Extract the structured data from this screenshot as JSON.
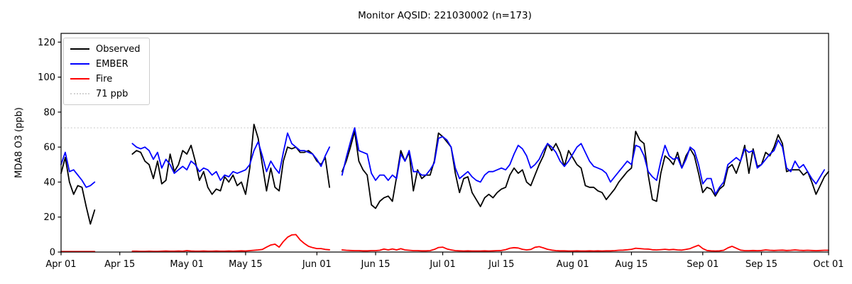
{
  "chart_data": {
    "type": "line",
    "title": "Monitor AQSID: 221030002 (n=173)",
    "xlabel": "",
    "ylabel": "MDA8 O3 (ppb)",
    "ylim": [
      0,
      125
    ],
    "grid": false,
    "legend_position": "upper left",
    "x_unit": "days since Apr 01",
    "x_range_days": 183,
    "x_ticks": [
      {
        "day": 0,
        "label": "Apr 01"
      },
      {
        "day": 14,
        "label": "Apr 15"
      },
      {
        "day": 30,
        "label": "May 01"
      },
      {
        "day": 44,
        "label": "May 15"
      },
      {
        "day": 61,
        "label": "Jun 01"
      },
      {
        "day": 75,
        "label": "Jun 15"
      },
      {
        "day": 91,
        "label": "Jul 01"
      },
      {
        "day": 105,
        "label": "Jul 15"
      },
      {
        "day": 122,
        "label": "Aug 01"
      },
      {
        "day": 136,
        "label": "Aug 15"
      },
      {
        "day": 153,
        "label": "Sep 01"
      },
      {
        "day": 167,
        "label": "Sep 15"
      },
      {
        "day": 183,
        "label": "Oct 01"
      }
    ],
    "y_ticks": [
      0,
      20,
      40,
      60,
      80,
      100,
      120
    ],
    "reference_line": {
      "label": "71 ppb",
      "value": 71,
      "color": "#d3d3d3",
      "style": "dotted"
    },
    "series": [
      {
        "name": "Observed",
        "color": "#000000",
        "values": [
          45,
          54,
          40,
          33,
          38,
          37,
          26,
          16,
          24,
          null,
          null,
          null,
          null,
          null,
          null,
          null,
          null,
          56,
          58,
          57,
          52,
          50,
          42,
          52,
          39,
          41,
          56,
          46,
          50,
          58,
          56,
          61,
          52,
          41,
          46,
          37,
          33,
          36,
          35,
          43,
          40,
          44,
          38,
          40,
          33,
          48,
          73,
          65,
          50,
          35,
          48,
          37,
          35,
          52,
          60,
          59,
          60,
          57,
          57,
          58,
          56,
          52,
          50,
          54,
          37,
          null,
          null,
          46,
          52,
          60,
          69,
          52,
          47,
          44,
          27,
          25,
          29,
          31,
          32,
          29,
          43,
          58,
          52,
          57,
          35,
          47,
          42,
          44,
          44,
          52,
          68,
          66,
          63,
          60,
          45,
          34,
          42,
          43,
          34,
          30,
          26,
          31,
          33,
          31,
          34,
          36,
          37,
          44,
          48,
          45,
          47,
          40,
          38,
          44,
          50,
          55,
          62,
          58,
          62,
          57,
          49,
          58,
          54,
          50,
          48,
          38,
          37,
          37,
          35,
          34,
          30,
          33,
          36,
          40,
          43,
          46,
          48,
          69,
          64,
          62,
          44,
          30,
          29,
          45,
          55,
          53,
          50,
          57,
          48,
          55,
          59,
          55,
          45,
          34,
          37,
          36,
          32,
          36,
          38,
          48,
          50,
          45,
          52,
          61,
          45,
          59,
          49,
          50,
          57,
          55,
          60,
          67,
          62,
          46,
          47,
          47,
          47,
          44,
          46,
          40,
          33,
          38,
          43,
          46
        ]
      },
      {
        "name": "EMBER",
        "color": "#0000ff",
        "values": [
          50,
          57,
          46,
          47,
          44,
          41,
          37,
          38,
          40,
          null,
          null,
          null,
          null,
          null,
          null,
          null,
          null,
          62,
          60,
          59,
          60,
          58,
          53,
          57,
          48,
          53,
          50,
          45,
          47,
          49,
          47,
          52,
          50,
          46,
          48,
          47,
          44,
          46,
          41,
          44,
          43,
          46,
          45,
          46,
          47,
          50,
          58,
          63,
          55,
          46,
          52,
          48,
          45,
          57,
          68,
          62,
          60,
          58,
          58,
          57,
          56,
          53,
          49,
          55,
          60,
          null,
          null,
          44,
          54,
          63,
          71,
          58,
          57,
          56,
          45,
          41,
          44,
          44,
          41,
          44,
          42,
          56,
          52,
          58,
          46,
          46,
          44,
          44,
          47,
          51,
          65,
          66,
          64,
          60,
          48,
          42,
          44,
          46,
          43,
          41,
          40,
          44,
          46,
          46,
          47,
          48,
          47,
          50,
          56,
          61,
          59,
          55,
          48,
          50,
          53,
          58,
          62,
          60,
          57,
          52,
          49,
          52,
          56,
          60,
          62,
          57,
          52,
          49,
          48,
          47,
          45,
          40,
          43,
          46,
          49,
          52,
          50,
          61,
          60,
          55,
          46,
          43,
          41,
          52,
          61,
          55,
          53,
          54,
          48,
          53,
          60,
          58,
          50,
          39,
          42,
          42,
          33,
          37,
          40,
          50,
          52,
          54,
          52,
          59,
          57,
          58,
          48,
          50,
          53,
          56,
          58,
          64,
          60,
          48,
          46,
          52,
          48,
          50,
          46,
          42,
          39,
          43,
          47,
          null
        ]
      },
      {
        "name": "Fire",
        "color": "#ff0000",
        "values": [
          0.3,
          0.3,
          0.3,
          0.3,
          0.3,
          0.3,
          0.3,
          0.3,
          0.3,
          null,
          null,
          null,
          null,
          null,
          null,
          null,
          null,
          0.5,
          0.5,
          0.4,
          0.4,
          0.5,
          0.4,
          0.4,
          0.5,
          0.6,
          0.5,
          0.5,
          0.6,
          0.5,
          0.8,
          0.6,
          0.5,
          0.5,
          0.6,
          0.5,
          0.5,
          0.6,
          0.5,
          0.5,
          0.6,
          0.5,
          0.6,
          0.7,
          0.6,
          0.8,
          1.0,
          1.2,
          1.5,
          2.8,
          4.0,
          4.5,
          2.8,
          6.0,
          8.5,
          9.8,
          10.0,
          7.0,
          4.9,
          3.3,
          2.5,
          2.0,
          2.0,
          1.5,
          1.3,
          null,
          null,
          1.2,
          1.0,
          0.9,
          0.8,
          0.8,
          0.7,
          0.7,
          0.8,
          0.8,
          1.0,
          1.7,
          1.2,
          1.8,
          1.2,
          1.9,
          1.2,
          1.0,
          0.8,
          0.8,
          0.7,
          0.7,
          0.8,
          1.5,
          2.6,
          2.8,
          1.8,
          1.2,
          0.8,
          0.7,
          0.6,
          0.7,
          0.6,
          0.6,
          0.6,
          0.7,
          0.6,
          0.7,
          0.8,
          0.9,
          1.4,
          2.2,
          2.5,
          2.3,
          1.6,
          1.2,
          1.5,
          2.7,
          3.1,
          2.4,
          1.6,
          1.1,
          0.8,
          0.7,
          0.7,
          0.6,
          0.6,
          0.7,
          0.6,
          0.6,
          0.7,
          0.6,
          0.7,
          0.6,
          0.7,
          0.7,
          0.8,
          1.0,
          1.1,
          1.3,
          1.6,
          2.2,
          2.0,
          1.8,
          1.7,
          1.3,
          1.2,
          1.4,
          1.6,
          1.3,
          1.5,
          1.2,
          1.1,
          1.5,
          2.0,
          3.0,
          3.9,
          2.0,
          0.9,
          0.7,
          0.6,
          0.7,
          1.0,
          2.4,
          3.3,
          2.2,
          1.1,
          0.8,
          0.8,
          0.9,
          0.8,
          0.9,
          1.2,
          1.0,
          0.9,
          1.0,
          1.1,
          0.9,
          1.0,
          1.2,
          1.0,
          0.9,
          1.0,
          0.9,
          0.8,
          0.9,
          1.0,
          1.0
        ]
      }
    ]
  }
}
